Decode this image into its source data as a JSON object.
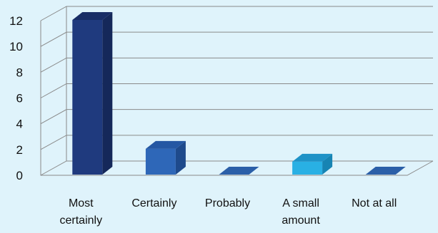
{
  "chart_data": {
    "type": "bar",
    "title": "",
    "xlabel": "",
    "ylabel": "",
    "categories": [
      [
        "Most",
        "certainly"
      ],
      [
        "Certainly"
      ],
      [
        "Probably"
      ],
      [
        "A small",
        "amount"
      ],
      [
        "Not at all"
      ]
    ],
    "values": [
      12,
      2,
      0,
      1,
      0
    ],
    "ylim": [
      0,
      12
    ],
    "yticks": [
      0,
      2,
      4,
      6,
      8,
      10,
      12
    ],
    "grid": true,
    "legend": "none",
    "bar_colors": [
      {
        "front": "#1f3a7e",
        "side": "#15285a",
        "top": "#182d66"
      },
      {
        "front": "#2e67b8",
        "side": "#1e4a8c",
        "top": "#2457a3"
      },
      {
        "front": "#2c68b3",
        "side": "#1f4f8a",
        "top": "#2b5fa8"
      },
      {
        "front": "#29b0e4",
        "side": "#1784b3",
        "top": "#1e92c7"
      },
      {
        "front": "#2c68b3",
        "side": "#1f4f8a",
        "top": "#2b5fa8"
      }
    ]
  }
}
